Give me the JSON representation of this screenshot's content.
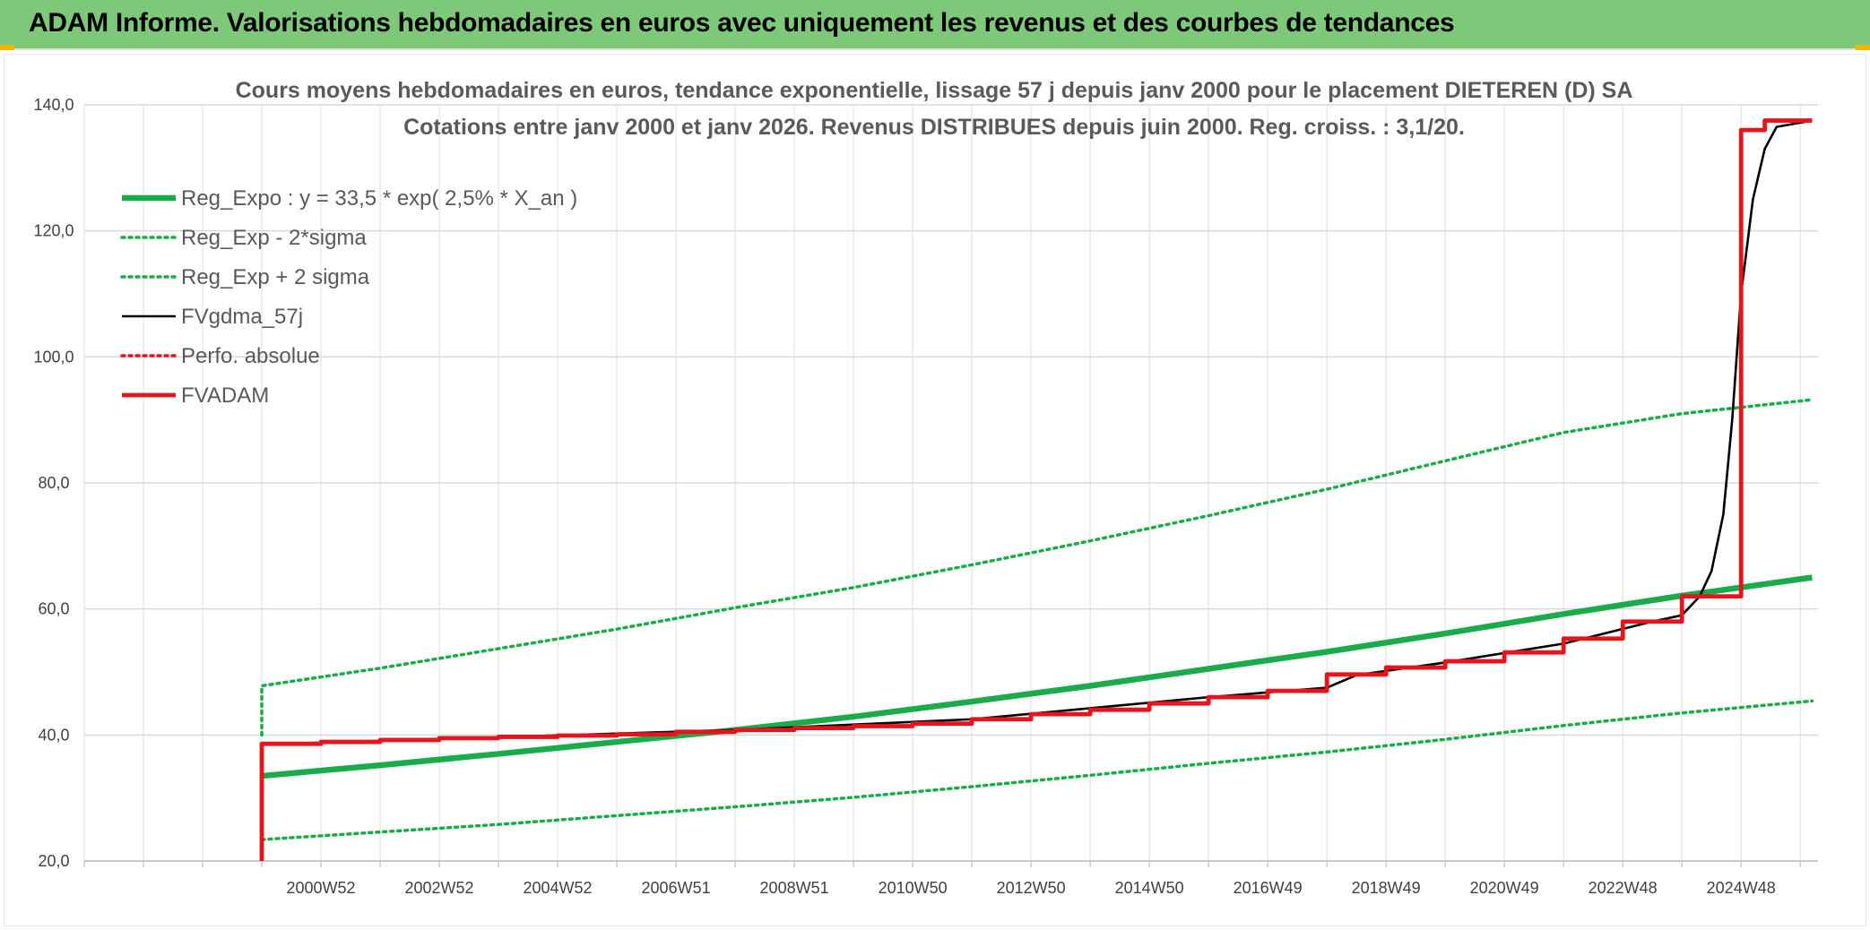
{
  "header": {
    "title": "ADAM Informe. Valorisations hebdomadaires en euros avec uniquement les revenus et des courbes de tendances"
  },
  "chart_data": {
    "type": "line",
    "title_lines": [
      "Cours moyens hebdomadaires en euros, tendance exponentielle, lissage 57 j depuis janv 2000 pour le placement DIETEREN (D) SA",
      "Cotations entre janv 2000 et janv 2026. Revenus DISTRIBUES depuis juin 2000. Reg. croiss. : 3,1/20."
    ],
    "xlabel": "",
    "ylabel": "",
    "ylim": [
      20,
      140
    ],
    "y_ticks": [
      "20,0",
      "40,0",
      "60,0",
      "80,0",
      "100,0",
      "120,0",
      "140,0"
    ],
    "x_range_years": [
      1997.0,
      2026.3
    ],
    "x_ticks": [
      {
        "label": "2000W52",
        "year": 2001.0
      },
      {
        "label": "2002W52",
        "year": 2003.0
      },
      {
        "label": "2004W52",
        "year": 2005.0
      },
      {
        "label": "2006W51",
        "year": 2007.0
      },
      {
        "label": "2008W51",
        "year": 2009.0
      },
      {
        "label": "2010W50",
        "year": 2011.0
      },
      {
        "label": "2012W50",
        "year": 2013.0
      },
      {
        "label": "2014W50",
        "year": 2015.0
      },
      {
        "label": "2016W49",
        "year": 2017.0
      },
      {
        "label": "2018W49",
        "year": 2019.0
      },
      {
        "label": "2020W49",
        "year": 2021.0
      },
      {
        "label": "2022W48",
        "year": 2023.0
      },
      {
        "label": "2024W48",
        "year": 2025.0
      }
    ],
    "grid": true,
    "legend_position": "top-left",
    "series": [
      {
        "name": "Reg_Expo : y = 33,5 * exp( 2,5% *  X_an )",
        "color": "#1aab4a",
        "style": "solid-thick",
        "x": [
          2000.0,
          2002.0,
          2004.0,
          2006.0,
          2008.0,
          2010.0,
          2012.0,
          2014.0,
          2016.0,
          2018.0,
          2020.0,
          2022.0,
          2024.0,
          2026.2
        ],
        "y": [
          33.5,
          35.2,
          37.0,
          38.9,
          40.8,
          42.9,
          45.3,
          47.8,
          50.5,
          53.2,
          56.1,
          59.2,
          62.1,
          65.0
        ]
      },
      {
        "name": "Reg_Exp - 2*sigma",
        "color": "#1aab4a",
        "style": "dotted",
        "x": [
          2000.0,
          2002.0,
          2004.0,
          2006.0,
          2008.0,
          2010.0,
          2012.0,
          2014.0,
          2016.0,
          2018.0,
          2020.0,
          2022.0,
          2024.0,
          2026.2
        ],
        "y": [
          23.4,
          24.6,
          25.8,
          27.2,
          28.6,
          30.1,
          31.8,
          33.6,
          35.5,
          37.3,
          39.3,
          41.5,
          43.5,
          45.4
        ]
      },
      {
        "name": "Reg_Exp + 2 sigma",
        "color": "#1aab4a",
        "style": "dotted",
        "x": [
          2000.0,
          2000.0,
          2002.0,
          2004.0,
          2006.0,
          2008.0,
          2010.0,
          2012.0,
          2014.0,
          2016.0,
          2018.0,
          2020.0,
          2022.0,
          2024.0,
          2026.2
        ],
        "y": [
          40.0,
          47.8,
          50.6,
          53.7,
          56.8,
          60.2,
          63.4,
          67.0,
          70.8,
          74.8,
          79.0,
          83.5,
          88.0,
          91.0,
          93.2
        ]
      },
      {
        "name": "FVgdma_57j",
        "color": "#000000",
        "style": "solid-thin",
        "x": [
          2000.0,
          2000.0,
          2008.0,
          2012.0,
          2016.0,
          2018.0,
          2018.5,
          2020.0,
          2022.0,
          2023.5,
          2024.0,
          2024.3,
          2024.5,
          2024.7,
          2024.85,
          2025.0,
          2025.2,
          2025.4,
          2025.6,
          2026.2
        ],
        "y": [
          20.0,
          38.5,
          40.8,
          42.5,
          46.0,
          47.5,
          49.5,
          51.5,
          54.5,
          58.0,
          59.0,
          62.0,
          66.0,
          75.0,
          90.0,
          110.0,
          125.0,
          133.0,
          136.5,
          137.5
        ]
      },
      {
        "name": "Perfo. absolue",
        "color": "#e8141b",
        "style": "dotted",
        "x": [],
        "y": []
      },
      {
        "name": "FVADAM",
        "color": "#e8141b",
        "style": "step-thick",
        "x": [
          2000.0,
          2000.0,
          2001.0,
          2002.0,
          2003.0,
          2004.0,
          2005.0,
          2006.0,
          2007.0,
          2008.0,
          2009.0,
          2010.0,
          2011.0,
          2012.0,
          2013.0,
          2014.0,
          2015.0,
          2016.0,
          2017.0,
          2018.0,
          2019.0,
          2020.0,
          2021.0,
          2022.0,
          2023.0,
          2024.0,
          2025.0,
          2025.4,
          2026.2
        ],
        "y": [
          20.0,
          38.6,
          38.9,
          39.2,
          39.5,
          39.7,
          39.9,
          40.1,
          40.5,
          40.8,
          41.1,
          41.4,
          41.8,
          42.5,
          43.3,
          44.0,
          45.0,
          46.0,
          47.0,
          49.6,
          50.7,
          51.7,
          53.1,
          55.3,
          58.0,
          62.0,
          136.0,
          137.5,
          137.5
        ]
      }
    ]
  }
}
